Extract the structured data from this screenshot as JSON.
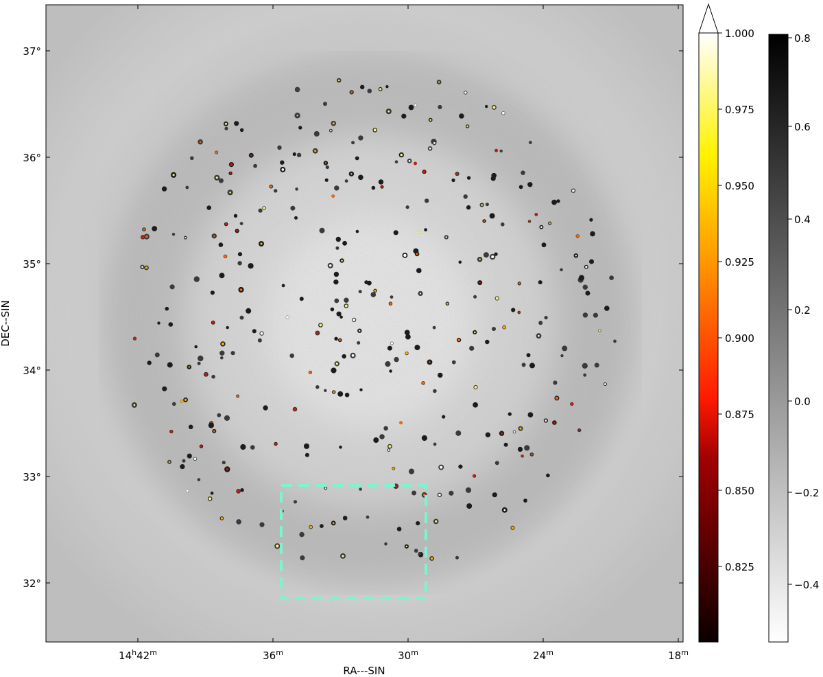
{
  "figure": {
    "xlabel": "RA---SIN",
    "ylabel": "DEC--SIN",
    "x_ticks": [
      {
        "h": "14",
        "hsup": "h",
        "m": "42",
        "msup": "m"
      },
      {
        "h": "",
        "hsup": "",
        "m": "36",
        "msup": "m"
      },
      {
        "h": "",
        "hsup": "",
        "m": "30",
        "msup": "m"
      },
      {
        "h": "",
        "hsup": "",
        "m": "24",
        "msup": "m"
      },
      {
        "h": "",
        "hsup": "",
        "m": "18",
        "msup": "m"
      }
    ],
    "y_ticks": [
      "37°",
      "36°",
      "35°",
      "34°",
      "33°",
      "32°"
    ],
    "colorbar_hot": {
      "ticks": [
        "1.000",
        "0.975",
        "0.950",
        "0.925",
        "0.900",
        "0.875",
        "0.850",
        "0.825"
      ],
      "extend": "max"
    },
    "colorbar_gray": {
      "ticks": [
        "0.8",
        "0.6",
        "0.4",
        "0.2",
        "0.0",
        "−0.2",
        "−0.4"
      ]
    },
    "highlight_box_color": "#7ff2d0"
  }
}
